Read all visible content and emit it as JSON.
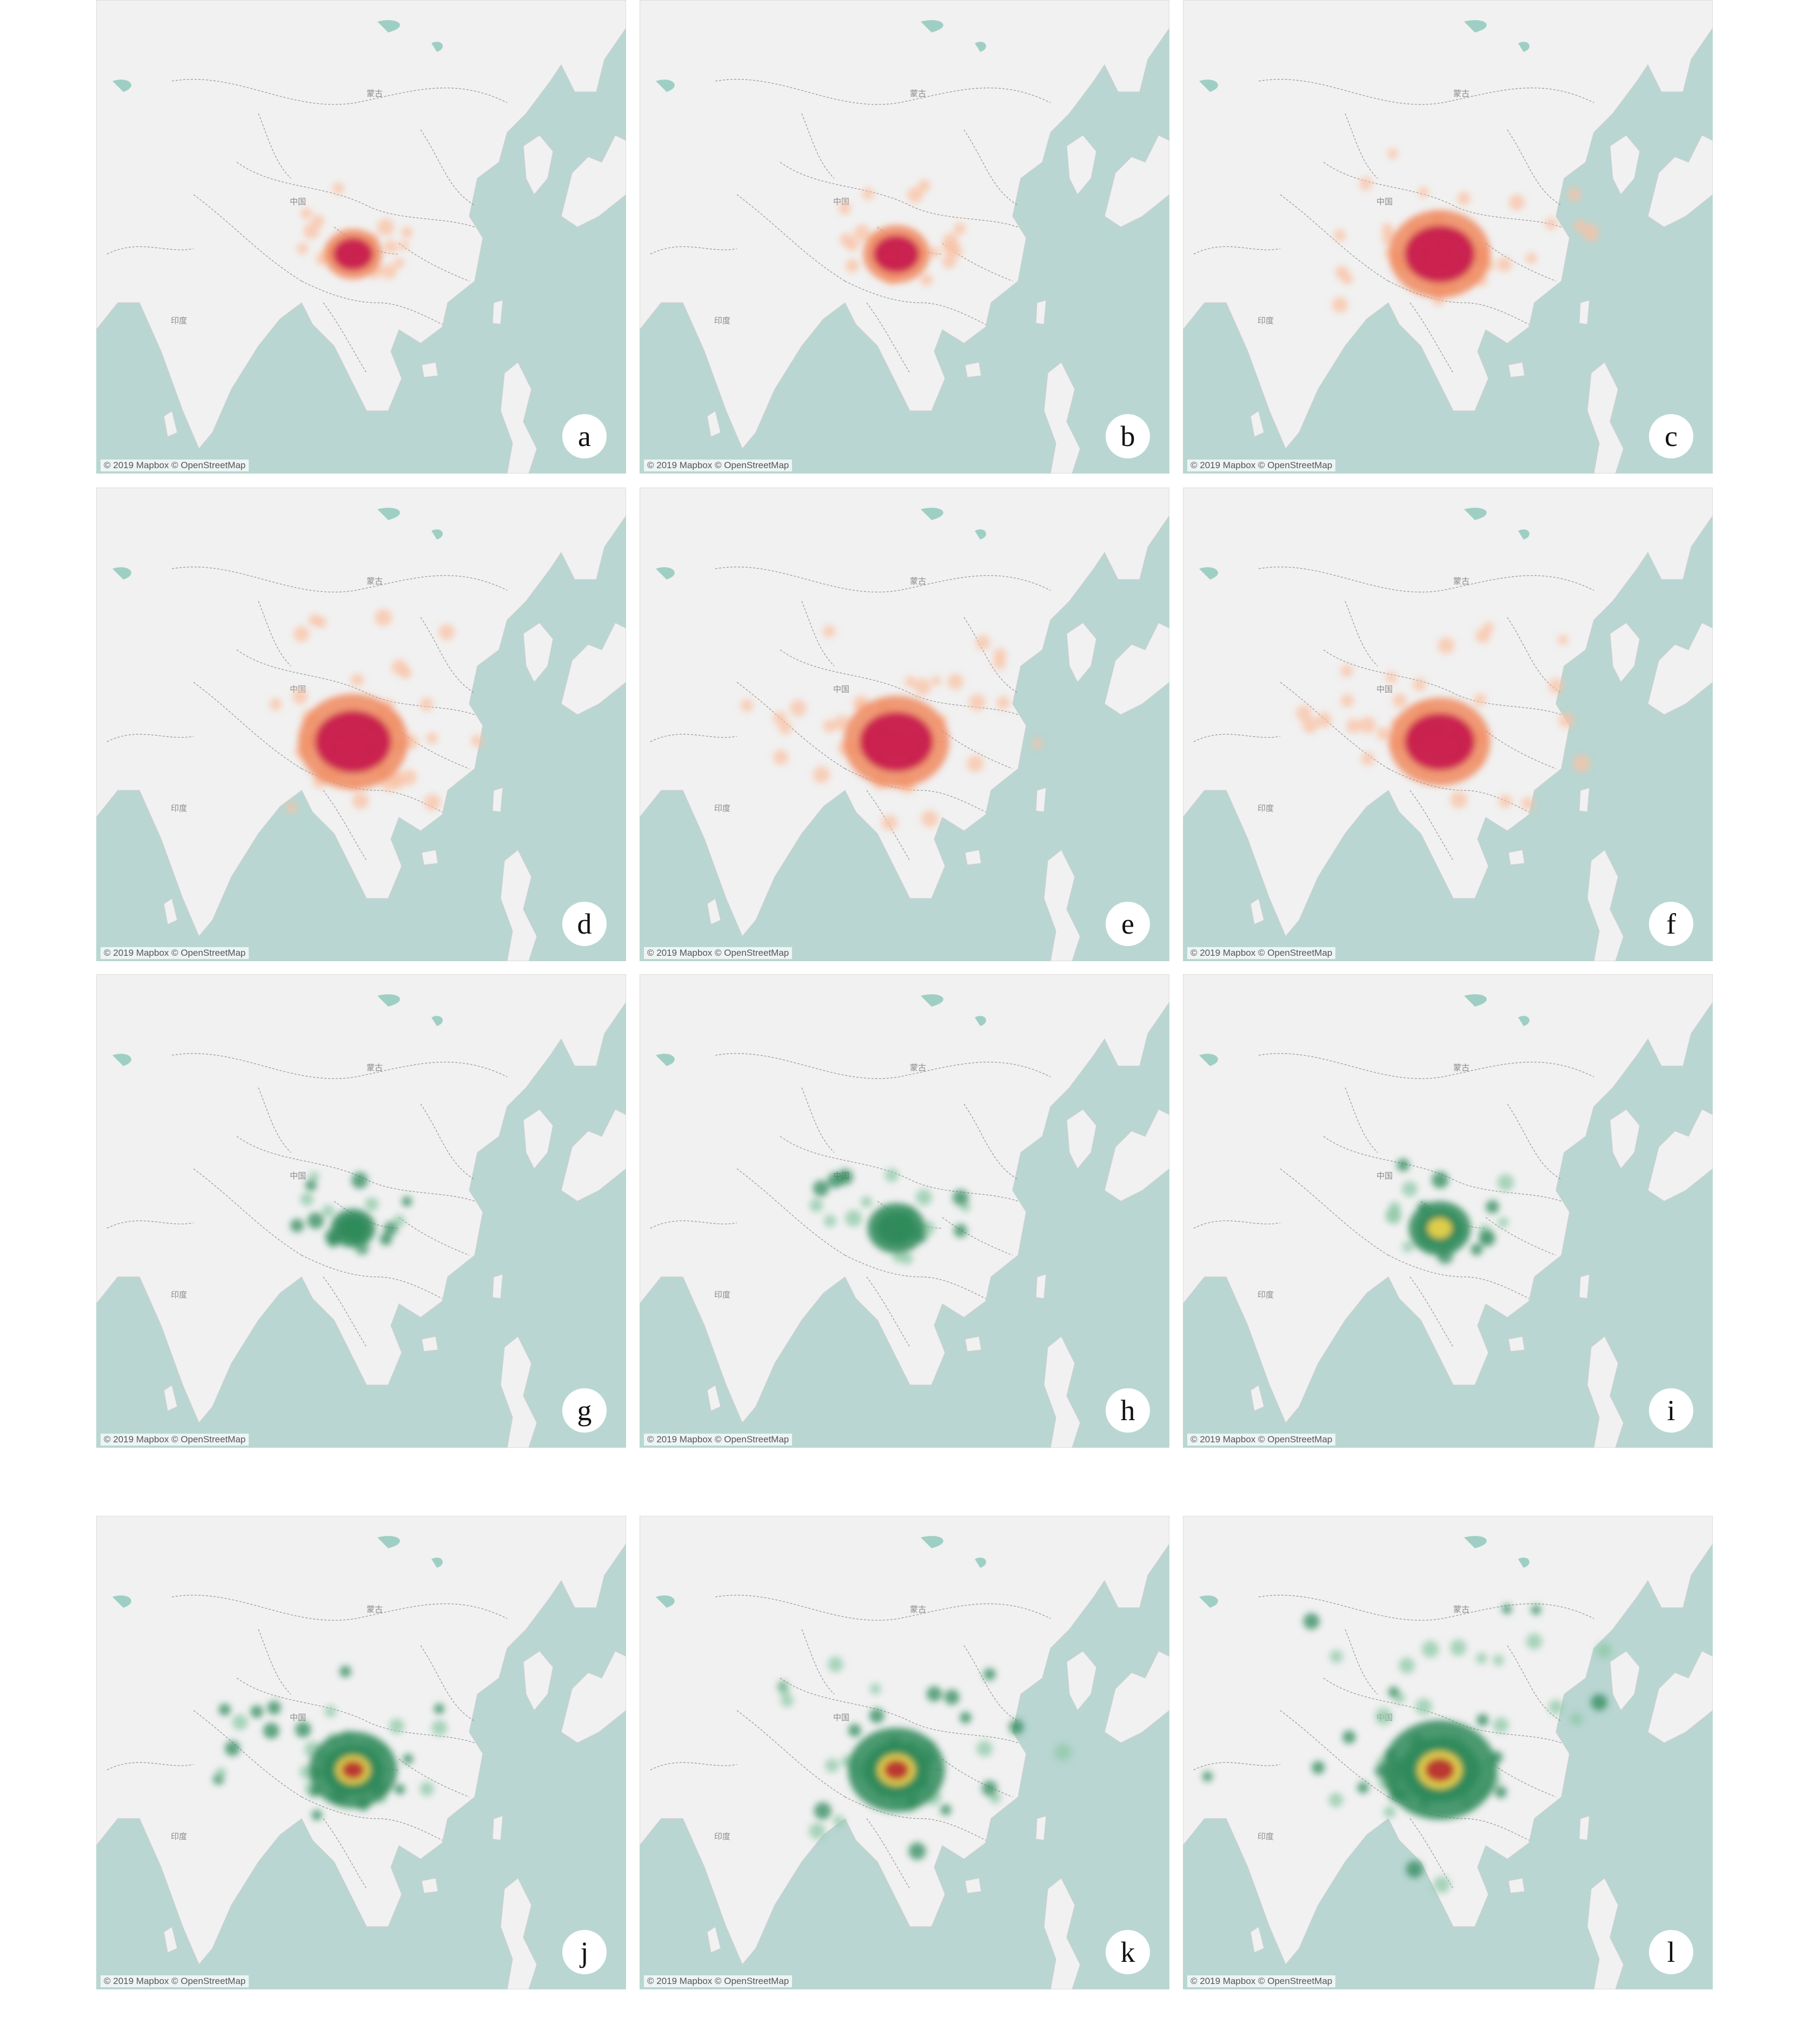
{
  "attribution": "© 2019 Mapbox © OpenStreetMap",
  "map_labels": {
    "mongolia": "蒙古",
    "china": "中国",
    "india": "印度"
  },
  "colors": {
    "sea": "#b9d6d2",
    "land": "#f1f1f1",
    "border": "#9a9a9a",
    "red_ramp": [
      "#f9c2a4",
      "#f08a5f",
      "#c81d4e"
    ],
    "green_ramp": [
      "#8fc9a8",
      "#2f8a5b",
      "#f3d54a",
      "#b7292e"
    ]
  },
  "legend": {
    "position": "none",
    "grid": false
  },
  "panels": [
    {
      "letter": "a",
      "theme": "red",
      "hotspot_intensity": 0.35,
      "spread": 0.15,
      "seed": 11
    },
    {
      "letter": "b",
      "theme": "red",
      "hotspot_intensity": 0.45,
      "spread": 0.2,
      "seed": 23
    },
    {
      "letter": "c",
      "theme": "red",
      "hotspot_intensity": 0.85,
      "spread": 0.5,
      "seed": 37
    },
    {
      "letter": "d",
      "theme": "red",
      "hotspot_intensity": 0.95,
      "spread": 0.6,
      "seed": 41
    },
    {
      "letter": "e",
      "theme": "red",
      "hotspot_intensity": 0.9,
      "spread": 0.55,
      "seed": 53
    },
    {
      "letter": "f",
      "theme": "red",
      "hotspot_intensity": 0.85,
      "spread": 0.6,
      "seed": 67
    },
    {
      "letter": "g",
      "theme": "green",
      "hotspot_intensity": 0.2,
      "spread": 0.12,
      "seed": 71
    },
    {
      "letter": "h",
      "theme": "green",
      "hotspot_intensity": 0.35,
      "spread": 0.18,
      "seed": 83
    },
    {
      "letter": "i",
      "theme": "green",
      "hotspot_intensity": 0.4,
      "spread": 0.2,
      "seed": 97
    },
    {
      "letter": "j",
      "theme": "green",
      "hotspot_intensity": 0.7,
      "spread": 0.45,
      "seed": 101
    },
    {
      "letter": "k",
      "theme": "green",
      "hotspot_intensity": 0.8,
      "spread": 0.55,
      "seed": 113
    },
    {
      "letter": "l",
      "theme": "green",
      "hotspot_intensity": 1.0,
      "spread": 0.95,
      "seed": 127
    }
  ]
}
